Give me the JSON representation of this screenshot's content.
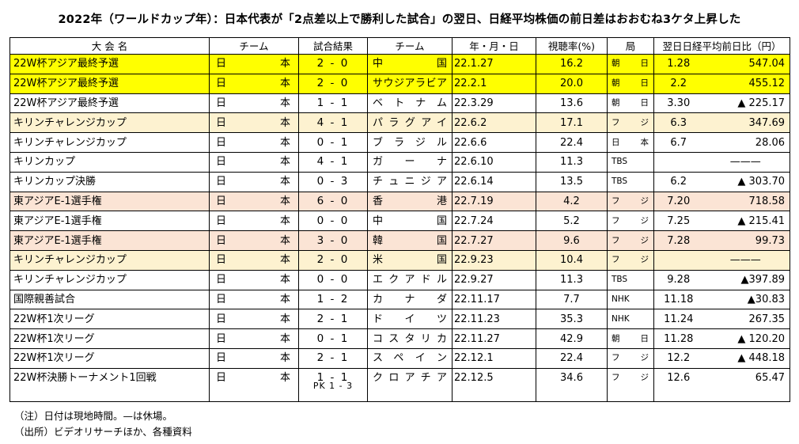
{
  "title": "2022年（ワールドカップ年）：日本代表が「2点差以上で勝利した試合」の翌日、日経平均株価の前日差はおおむね3ケタ上昇した",
  "headers": {
    "tournament": "大 会 名",
    "team": "チーム",
    "result": "試合結果",
    "opponent": "チーム",
    "date": "年・月・日",
    "rating": "視聴率(%)",
    "broadcaster": "局",
    "nikkei": "翌日日経平均前日比（円）"
  },
  "rows": [
    {
      "tournament": "22W杯アジア最終予選",
      "team": "日本",
      "result": "2 - 0",
      "opponent": "中国",
      "date": "22.1.27",
      "rating": "16.2",
      "broadcaster": "朝日",
      "next_day": "1.28",
      "diff": "547.04",
      "highlight": "yellow"
    },
    {
      "tournament": "22W杯アジア最終予選",
      "team": "日本",
      "result": "2 - 0",
      "opponent": "サウジアラビア",
      "date": "22.2.1",
      "rating": "20.0",
      "broadcaster": "朝日",
      "next_day": "2.2",
      "diff": "455.12",
      "highlight": "yellow"
    },
    {
      "tournament": "22W杯アジア最終予選",
      "team": "日本",
      "result": "1 - 1",
      "opponent": "ベトナム",
      "date": "22.3.29",
      "rating": "13.6",
      "broadcaster": "朝日",
      "next_day": "3.30",
      "diff": "▲ 225.17",
      "highlight": "none"
    },
    {
      "tournament": "キリンチャレンジカップ",
      "team": "日本",
      "result": "4 - 1",
      "opponent": "パラグアイ",
      "date": "22.6.2",
      "rating": "17.1",
      "broadcaster": "フジ",
      "next_day": "6.3",
      "diff": "347.69",
      "highlight": "cream"
    },
    {
      "tournament": "キリンチャレンジカップ",
      "team": "日本",
      "result": "0 - 1",
      "opponent": "ブラジル",
      "date": "22.6.6",
      "rating": "22.4",
      "broadcaster": "日本",
      "next_day": "6.7",
      "diff": "28.06",
      "highlight": "none"
    },
    {
      "tournament": "キリンカップ",
      "team": "日本",
      "result": "4 - 1",
      "opponent": "ガーナ",
      "date": "22.6.10",
      "rating": "11.3",
      "broadcaster": "TBS",
      "next_day": "",
      "diff": "———",
      "highlight": "none"
    },
    {
      "tournament": "キリンカップ決勝",
      "team": "日本",
      "result": "0 - 3",
      "opponent": "チュニジア",
      "date": "22.6.14",
      "rating": "13.5",
      "broadcaster": "TBS",
      "next_day": "6.2",
      "diff": "▲ 303.70",
      "highlight": "none"
    },
    {
      "tournament": "東アジアE-1選手権",
      "team": "日本",
      "result": "6 - 0",
      "opponent": "香港",
      "date": "22.7.19",
      "rating": "4.2",
      "broadcaster": "フジ",
      "next_day": "7.20",
      "diff": "718.58",
      "highlight": "pink"
    },
    {
      "tournament": "東アジアE-1選手権",
      "team": "日本",
      "result": "0 - 0",
      "opponent": "中国",
      "date": "22.7.24",
      "rating": "5.2",
      "broadcaster": "フジ",
      "next_day": "7.25",
      "diff": "▲ 215.41",
      "highlight": "none"
    },
    {
      "tournament": "東アジアE-1選手権",
      "team": "日本",
      "result": "3 - 0",
      "opponent": "韓国",
      "date": "22.7.27",
      "rating": "9.6",
      "broadcaster": "フジ",
      "next_day": "7.28",
      "diff": "99.73",
      "highlight": "pink"
    },
    {
      "tournament": "キリンチャレンジカップ",
      "team": "日本",
      "result": "2 - 0",
      "opponent": "米国",
      "date": "22.9.23",
      "rating": "10.4",
      "broadcaster": "フジ",
      "next_day": "",
      "diff": "———",
      "highlight": "cream"
    },
    {
      "tournament": "キリンチャレンジカップ",
      "team": "日本",
      "result": "0 - 0",
      "opponent": "エクアドル",
      "date": "22.9.27",
      "rating": "11.3",
      "broadcaster": "TBS",
      "next_day": "9.28",
      "diff": "▲397.89",
      "highlight": "none"
    },
    {
      "tournament": "国際親善試合",
      "team": "日本",
      "result": "1 - 2",
      "opponent": "カナダ",
      "date": "22.11.17",
      "rating": "7.7",
      "broadcaster": "NHK",
      "next_day": "11.18",
      "diff": "▲30.83",
      "highlight": "none"
    },
    {
      "tournament": "22W杯1次リーグ",
      "team": "日本",
      "result": "2 - 1",
      "opponent": "ドイツ",
      "date": "22.11.23",
      "rating": "35.3",
      "broadcaster": "NHK",
      "next_day": "11.24",
      "diff": "267.35",
      "highlight": "none"
    },
    {
      "tournament": "22W杯1次リーグ",
      "team": "日本",
      "result": "0 - 1",
      "opponent": "コスタリカ",
      "date": "22.11.27",
      "rating": "42.9",
      "broadcaster": "朝日",
      "next_day": "11.28",
      "diff": "▲ 120.20",
      "highlight": "none"
    },
    {
      "tournament": "22W杯1次リーグ",
      "team": "日本",
      "result": "2 - 1",
      "opponent": "スペイン",
      "date": "22.12.1",
      "rating": "22.4",
      "broadcaster": "フジ",
      "next_day": "12.2",
      "diff": "▲ 448.18",
      "highlight": "none"
    },
    {
      "tournament": "22W杯決勝トーナメント1回戦",
      "team": "日本",
      "result": "1 - 1",
      "pk": "PK 1 - 3",
      "opponent": "クロアチア",
      "date": "22.12.5",
      "rating": "34.6",
      "broadcaster": "フジ",
      "next_day": "12.6",
      "diff": "65.47",
      "highlight": "none"
    }
  ],
  "notes": [
    "（注）日付は現地時間。—は休場。",
    "（出所）ビデオリサーチほか、各種資料"
  ],
  "colors": {
    "yellow": "#ffff00",
    "cream": "#fdf2d0",
    "pink": "#fbe4d5"
  }
}
